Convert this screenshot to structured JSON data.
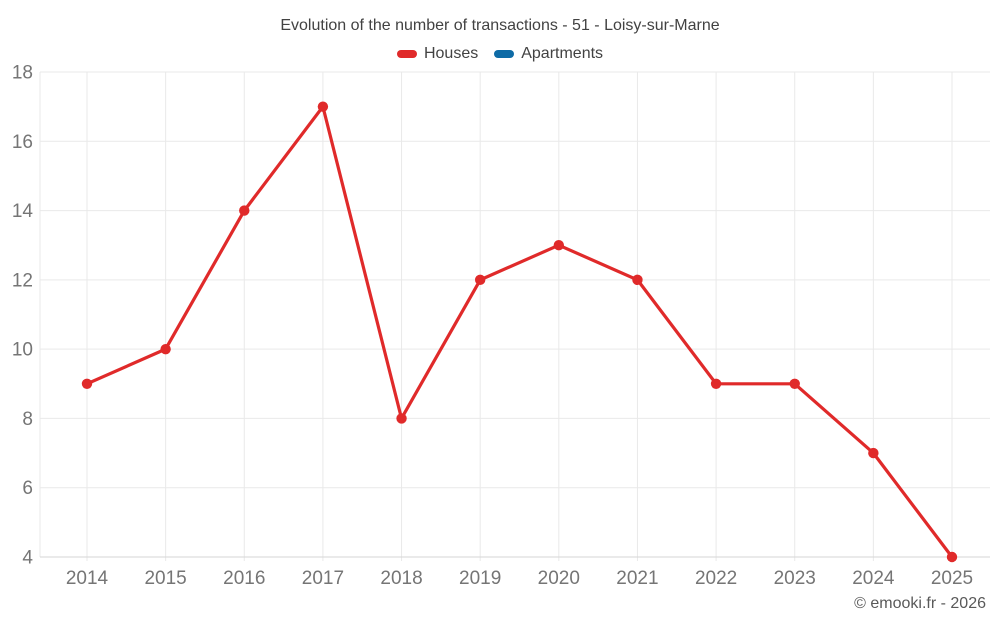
{
  "title": "Evolution of the number of transactions - 51 - Loisy-sur-Marne",
  "footer": "© emooki.fr - 2026",
  "colors": {
    "houses": "#e02a2a",
    "apartments": "#0e6ba6",
    "grid": "#e9e9e9",
    "axis": "#d6d6d6",
    "title_text": "#424242",
    "axis_text": "#757575",
    "footer_text": "#595959"
  },
  "legend": [
    {
      "label": "Houses",
      "color": "#e02a2a"
    },
    {
      "label": "Apartments",
      "color": "#0e6ba6"
    }
  ],
  "chart_data": {
    "type": "line",
    "title": "Evolution of the number of transactions - 51 - Loisy-sur-Marne",
    "xlabel": "",
    "ylabel": "",
    "categories": [
      "2014",
      "2015",
      "2016",
      "2017",
      "2018",
      "2019",
      "2020",
      "2021",
      "2022",
      "2023",
      "2024",
      "2025"
    ],
    "series": [
      {
        "name": "Houses",
        "color_key": "houses",
        "values": [
          9,
          10,
          14,
          17,
          8,
          12,
          13,
          12,
          9,
          9,
          7,
          4
        ]
      },
      {
        "name": "Apartments",
        "color_key": "apartments",
        "values": []
      }
    ],
    "ylim": [
      4,
      18
    ],
    "ytick_step": 2,
    "grid": true,
    "legend_position": "top",
    "marker": "circle"
  }
}
